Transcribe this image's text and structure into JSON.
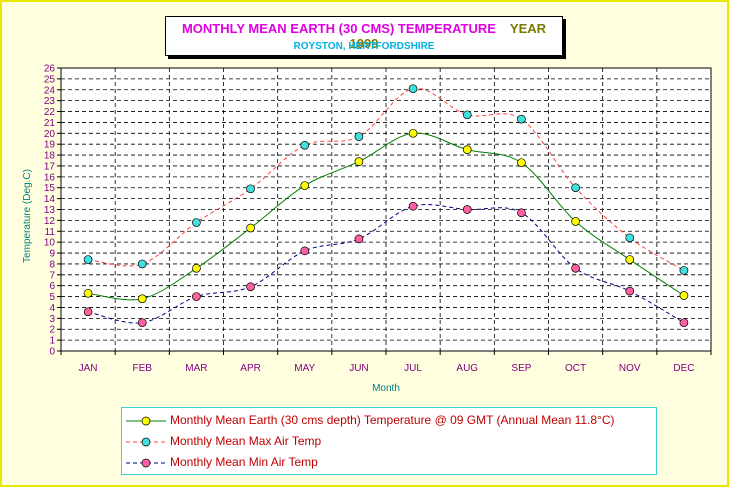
{
  "title": "MONTHLY MEAN EARTH (30 CMS) TEMPERATURE",
  "year": "YEAR 1999",
  "subtitle": "ROYSTON, HERTFORDSHIRE",
  "colors": {
    "background": "#ffffe0",
    "earth": "#008000",
    "earth_marker": "#ffff00",
    "max_line": "#ff4040",
    "max_marker": "#40e0e0",
    "min_line": "#000080",
    "min_marker": "#ff60a0",
    "axis_text": "#800080",
    "axis_label": "#008080"
  },
  "chart_data": {
    "type": "line",
    "categories": [
      "JAN",
      "FEB",
      "MAR",
      "APR",
      "MAY",
      "JUN",
      "JUL",
      "AUG",
      "SEP",
      "OCT",
      "NOV",
      "DEC"
    ],
    "xlabel": "Month",
    "ylabel": "Temperature (Deg.C)",
    "ylim": [
      0,
      26
    ],
    "yticks": [
      0,
      1,
      2,
      3,
      4,
      5,
      6,
      7,
      8,
      9,
      10,
      11,
      12,
      13,
      14,
      15,
      16,
      17,
      18,
      19,
      20,
      21,
      22,
      23,
      24,
      25,
      26
    ],
    "grid": true,
    "legend_position": "bottom",
    "series": [
      {
        "name": "Monthly Mean Earth (30 cms depth) Temperature @ 09 GMT (Annual Mean 11.8°C)",
        "style": "solid",
        "values": [
          5.3,
          4.8,
          7.6,
          11.3,
          15.2,
          17.4,
          20.0,
          18.5,
          17.3,
          11.9,
          8.4,
          5.1
        ]
      },
      {
        "name": "Monthly Mean Max Air Temp",
        "style": "dashed",
        "values": [
          8.4,
          8.0,
          11.8,
          14.9,
          18.9,
          19.7,
          24.1,
          21.7,
          21.3,
          15.0,
          10.4,
          7.4
        ]
      },
      {
        "name": "Monthly Mean Min Air Temp",
        "style": "dashed",
        "values": [
          3.6,
          2.6,
          5.0,
          5.9,
          9.2,
          10.3,
          13.3,
          13.0,
          12.7,
          7.6,
          5.5,
          2.6
        ]
      }
    ]
  }
}
